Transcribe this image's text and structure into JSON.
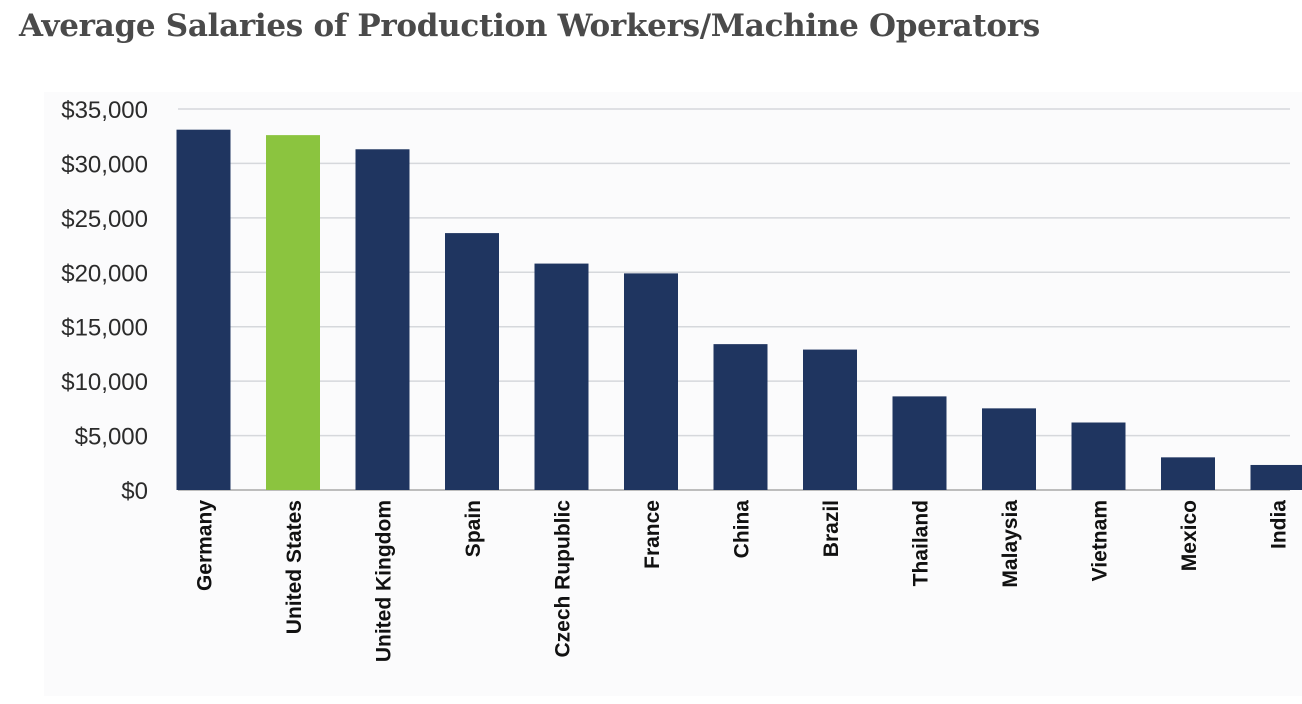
{
  "chart_data": {
    "type": "bar",
    "title": "Average Salaries of Production Workers/Machine Operators",
    "xlabel": "",
    "ylabel": "",
    "ylim": [
      0,
      35000
    ],
    "ytick_values": [
      0,
      5000,
      10000,
      15000,
      20000,
      25000,
      30000,
      35000
    ],
    "ytick_labels": [
      "$0",
      "$5,000",
      "$10,000",
      "$15,000",
      "$20,000",
      "$25,000",
      "$30,000",
      "$35,000"
    ],
    "grid": "horizontal",
    "categories": [
      "Germany",
      "United States",
      "United Kingdom",
      "Spain",
      "Czech Rupublic",
      "France",
      "China",
      "Brazil",
      "Thailand",
      "Malaysia",
      "Vietnam",
      "Mexico",
      "India"
    ],
    "values": [
      33100,
      32600,
      31300,
      23600,
      20800,
      19900,
      13400,
      12900,
      8600,
      7500,
      6200,
      3000,
      2300
    ],
    "colors": {
      "default": "#1f3560",
      "highlight": "#8bc43f",
      "highlight_category": "United States",
      "grid": "#d6d8dc",
      "axis": "#bdbdbd"
    }
  }
}
